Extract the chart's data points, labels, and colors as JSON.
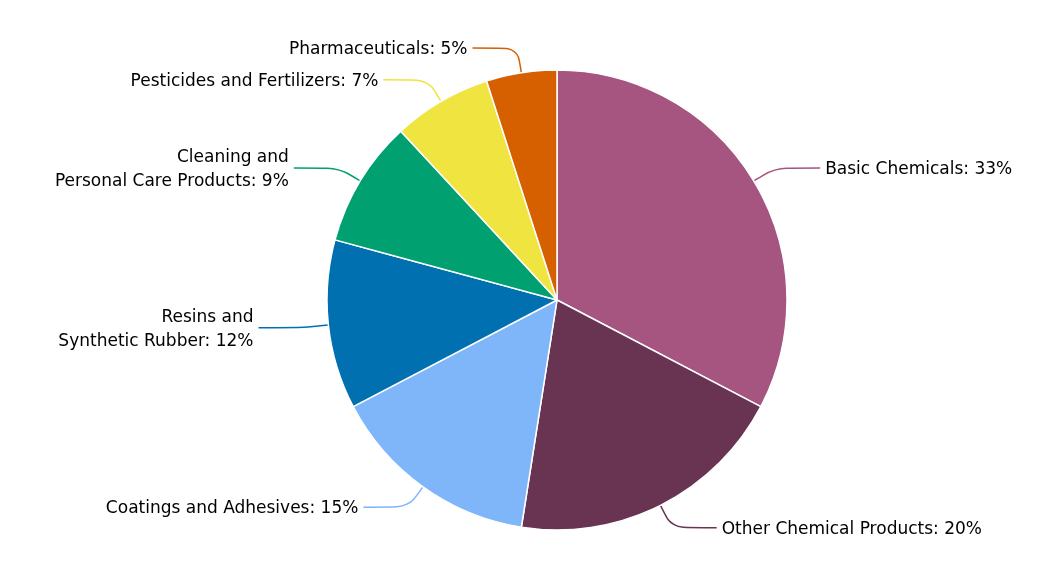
{
  "chart_data": {
    "type": "pie",
    "categories": [
      "Basic Chemicals",
      "Other Chemical Products",
      "Coatings and Adhesives",
      "Resins and\nSynthetic Rubber",
      "Cleaning and\nPersonal Care Products",
      "Pesticides and Fertilizers",
      "Pharmaceuticals"
    ],
    "values": [
      33,
      20,
      15,
      12,
      9,
      7,
      5
    ],
    "value_labels": [
      "33%",
      "20%",
      "15%",
      "12%",
      "9%",
      "7%",
      "5%"
    ],
    "colors": [
      "#a5557f",
      "#693352",
      "#7eb6f9",
      "#0070b0",
      "#00a070",
      "#f0e440",
      "#d65f00"
    ],
    "legend": false
  }
}
